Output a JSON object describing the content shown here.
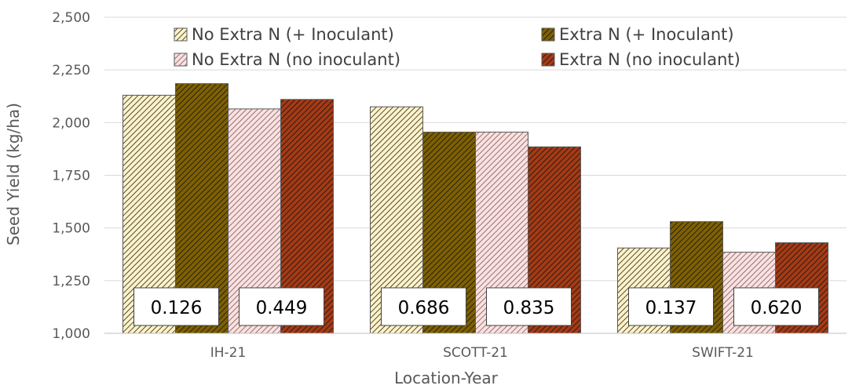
{
  "chart_data": {
    "type": "bar",
    "title": "",
    "xlabel": "Location-Year",
    "ylabel": "Seed Yield (kg/ha)",
    "ylim": [
      1000,
      2500
    ],
    "yticks": [
      "1,000",
      "1,250",
      "1,500",
      "1,750",
      "2,000",
      "2,250",
      "2,500"
    ],
    "grid": true,
    "legend_position": "top",
    "categories": [
      "IH-21",
      "SCOTT-21",
      "SWIFT-21"
    ],
    "series": [
      {
        "name": "No Extra N (+ Inoculant)",
        "values": [
          2130,
          2075,
          1405
        ],
        "fill": "#FFF2CC",
        "pattern_color": "#3A3A1A"
      },
      {
        "name": "Extra N (+ Inoculant)",
        "values": [
          2185,
          1955,
          1530
        ],
        "fill": "#7F6000",
        "pattern_color": "#1A1A1A"
      },
      {
        "name": "No Extra N (no inoculant)",
        "values": [
          2065,
          1955,
          1385
        ],
        "fill": "#FFE0E0",
        "pattern_color": "#7A6A6A"
      },
      {
        "name": "Extra N (no inoculant)",
        "values": [
          2110,
          1885,
          1430
        ],
        "fill": "#A63A14",
        "pattern_color": "#1A1A1A"
      }
    ],
    "annotations": [
      [
        "0.126",
        "0.449"
      ],
      [
        "0.686",
        "0.835"
      ],
      [
        "0.137",
        "0.620"
      ]
    ]
  }
}
